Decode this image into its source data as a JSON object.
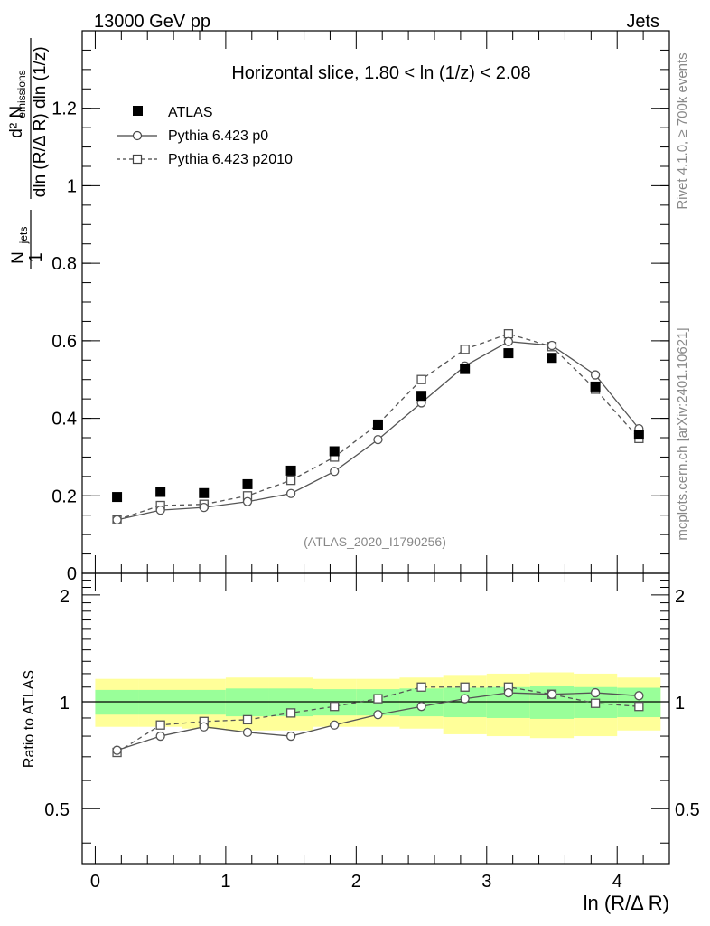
{
  "header": {
    "left": "13000 GeV pp",
    "right": "Jets"
  },
  "side_text": {
    "rivet": "Rivet 4.1.0, ≥ 700k events",
    "mcplots": "mcplots.cern.ch [arXiv:2401.10621]"
  },
  "colors": {
    "band_inner": "#99ff99",
    "band_outer": "#ffff99",
    "data": "#000000",
    "mc": "#555555"
  },
  "chart_data": [
    {
      "type": "scatter",
      "title": "Horizontal slice, 1.80 < ln (1/z) < 2.08",
      "watermark": "(ATLAS_2020_I1790256)",
      "ylabel": "1/N_jets d²N_emissions / dln(R/ΔR) dln(1/z)",
      "ylabel_parts": {
        "one": "1",
        "njets": "N",
        "njets_sub": "jets",
        "d2": "d² N",
        "emis_sub": "emissions",
        "den": "dln (R/Δ R) dln (1/z)"
      },
      "xlim": [
        -0.1,
        4.4
      ],
      "ylim": [
        0,
        1.4
      ],
      "yticks": [
        0,
        0.2,
        0.4,
        0.6,
        0.8,
        1,
        1.2
      ],
      "ytick_labels": [
        "0",
        "0.2",
        "0.4",
        "0.6",
        "0.8",
        "1",
        "1.2"
      ],
      "x": [
        0.167,
        0.5,
        0.833,
        1.167,
        1.5,
        1.833,
        2.167,
        2.5,
        2.833,
        3.167,
        3.5,
        3.833,
        4.167
      ],
      "series": [
        {
          "name": "ATLAS",
          "marker": "filled-square",
          "values": [
            0.197,
            0.21,
            0.207,
            0.23,
            0.265,
            0.315,
            0.382,
            0.458,
            0.527,
            0.568,
            0.556,
            0.482,
            0.358
          ]
        },
        {
          "name": "Pythia 6.423 p0",
          "marker": "open-circle",
          "line": "solid",
          "values": [
            0.138,
            0.163,
            0.17,
            0.185,
            0.206,
            0.263,
            0.345,
            0.44,
            0.535,
            0.598,
            0.588,
            0.512,
            0.373
          ]
        },
        {
          "name": "Pythia 6.423 p2010",
          "marker": "open-square",
          "line": "dashed",
          "values": [
            0.138,
            0.175,
            0.178,
            0.2,
            0.24,
            0.3,
            0.385,
            0.5,
            0.578,
            0.618,
            0.585,
            0.475,
            0.348
          ]
        }
      ]
    },
    {
      "type": "scatter",
      "xlabel": "ln (R/Δ R)",
      "ylabel": "Ratio to ATLAS",
      "xlim": [
        -0.1,
        4.4
      ],
      "ylim": [
        0.35,
        2.3
      ],
      "xticks": [
        0,
        1,
        2,
        3,
        4
      ],
      "xtick_labels": [
        "0",
        "1",
        "2",
        "3",
        "4"
      ],
      "yticks": [
        0.5,
        1,
        2
      ],
      "ytick_labels": [
        "0.5",
        "1",
        "2"
      ],
      "reference_line": 1,
      "x": [
        0.167,
        0.5,
        0.833,
        1.167,
        1.5,
        1.833,
        2.167,
        2.5,
        2.833,
        3.167,
        3.5,
        3.833,
        4.167
      ],
      "band_edges": [
        0,
        0.333,
        0.667,
        1.0,
        1.333,
        1.667,
        2.0,
        2.333,
        2.667,
        3.0,
        3.333,
        3.667,
        4.0,
        4.333
      ],
      "band_inner": {
        "lo": [
          0.92,
          0.92,
          0.92,
          0.91,
          0.91,
          0.915,
          0.915,
          0.91,
          0.905,
          0.9,
          0.895,
          0.9,
          0.905
        ],
        "hi": [
          1.08,
          1.08,
          1.08,
          1.09,
          1.09,
          1.085,
          1.085,
          1.09,
          1.095,
          1.1,
          1.105,
          1.1,
          1.095
        ]
      },
      "band_outer": {
        "lo": [
          0.85,
          0.85,
          0.84,
          0.83,
          0.83,
          0.85,
          0.85,
          0.84,
          0.81,
          0.8,
          0.79,
          0.8,
          0.83
        ],
        "hi": [
          1.16,
          1.16,
          1.16,
          1.17,
          1.17,
          1.16,
          1.16,
          1.17,
          1.19,
          1.2,
          1.21,
          1.2,
          1.17
        ]
      },
      "series": [
        {
          "name": "Pythia 6.423 p0",
          "marker": "open-circle",
          "line": "solid",
          "values": [
            0.73,
            0.8,
            0.85,
            0.82,
            0.8,
            0.86,
            0.92,
            0.97,
            1.02,
            1.06,
            1.05,
            1.06,
            1.04
          ]
        },
        {
          "name": "Pythia 6.423 p2010",
          "marker": "open-square",
          "line": "dashed",
          "values": [
            0.72,
            0.86,
            0.88,
            0.89,
            0.93,
            0.97,
            1.02,
            1.1,
            1.1,
            1.1,
            1.05,
            0.99,
            0.97
          ]
        }
      ]
    }
  ]
}
